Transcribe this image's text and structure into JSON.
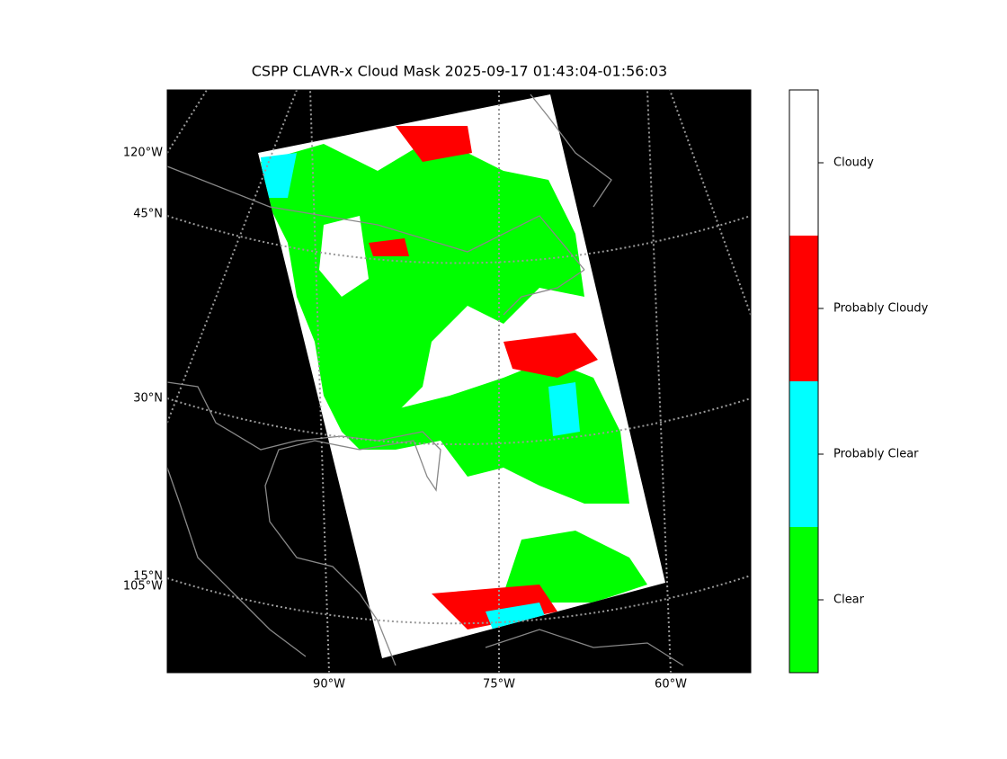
{
  "title": "CSPP CLAVR-x Cloud Mask 2025-09-17 01:43:04-01:56:03",
  "map": {
    "left_labels": [
      "120°W",
      "45°N",
      "30°N",
      "15°N",
      "105°W"
    ],
    "bottom_labels": [
      "90°W",
      "75°W",
      "60°W"
    ]
  },
  "colorbar": {
    "categories": [
      "Clear",
      "Probably Clear",
      "Probably Cloudy",
      "Cloudy"
    ],
    "colors": [
      "#00ff00",
      "#00ffff",
      "#ff0000",
      "#ffffff"
    ]
  }
}
